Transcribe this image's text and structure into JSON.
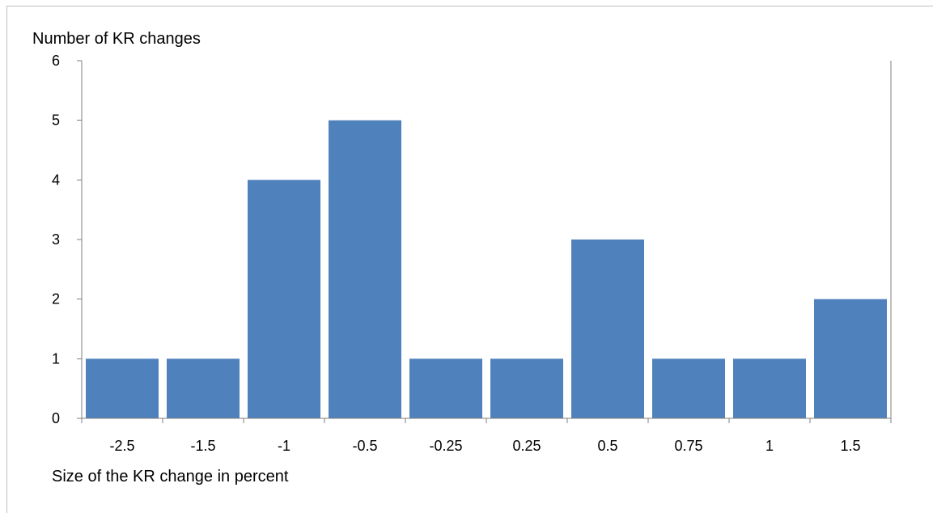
{
  "chart_data": {
    "type": "bar",
    "categories": [
      "-2.5",
      "-1.5",
      "-1",
      "-0.5",
      "-0.25",
      "0.25",
      "0.5",
      "0.75",
      "1",
      "1.5"
    ],
    "values": [
      1,
      1,
      4,
      5,
      1,
      1,
      3,
      1,
      1,
      2
    ],
    "title": "",
    "xlabel": "Size of the KR change in percent",
    "ylabel": "Number of KR changes",
    "ylim": [
      0,
      6
    ],
    "yticks": [
      "0",
      "1",
      "2",
      "3",
      "4",
      "5",
      "6"
    ],
    "grid": false,
    "legend": "none",
    "bar_color": "#4f81bd",
    "axis_color": "#7f7f7f"
  }
}
